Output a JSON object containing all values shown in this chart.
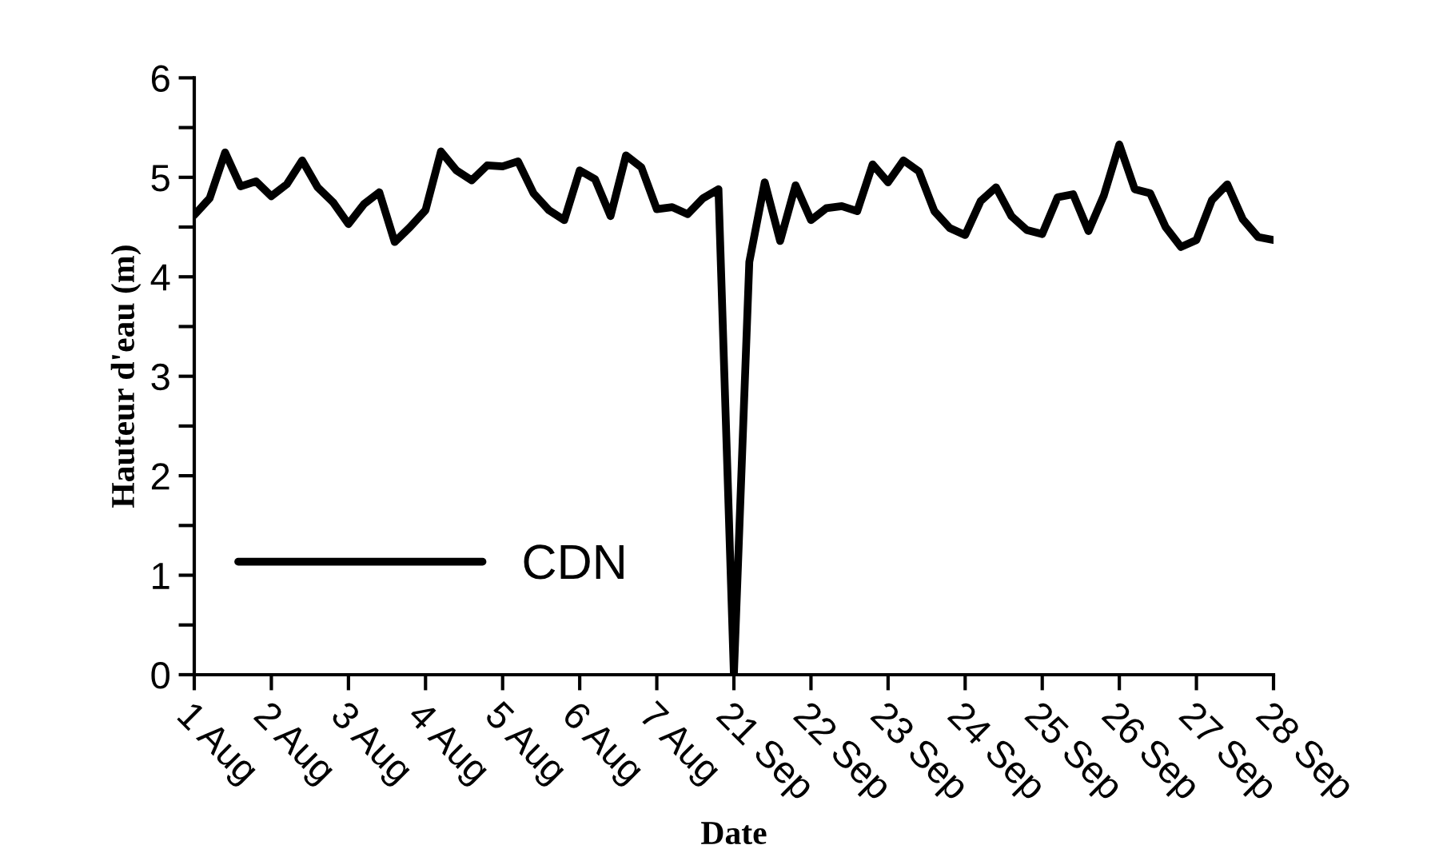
{
  "chart_data": {
    "type": "line",
    "xlabel": "Date",
    "ylabel": "Hauteur d'eau (m)",
    "categories": [
      "1 Aug",
      null,
      null,
      null,
      null,
      "2 Aug",
      null,
      null,
      null,
      null,
      "3 Aug",
      null,
      null,
      null,
      null,
      "4 Aug",
      null,
      null,
      null,
      null,
      "5 Aug",
      null,
      null,
      null,
      null,
      "6 Aug",
      null,
      null,
      null,
      null,
      "7 Aug",
      null,
      null,
      null,
      null,
      "21 Sep",
      null,
      null,
      null,
      null,
      "22 Sep",
      null,
      null,
      null,
      null,
      "23 Sep",
      null,
      null,
      null,
      null,
      "24 Sep",
      null,
      null,
      null,
      null,
      "25 Sep",
      null,
      null,
      null,
      null,
      "26 Sep",
      null,
      null,
      null,
      null,
      "27 Sep",
      null,
      null,
      null,
      null,
      "28 Sep"
    ],
    "ylim": [
      0,
      6
    ],
    "yticks": [
      0,
      {
        "value": 0.5,
        "label": null
      },
      1,
      {
        "value": 1.5,
        "label": null
      },
      2,
      {
        "value": 2.5,
        "label": null
      },
      3,
      {
        "value": 3.5,
        "label": null
      },
      4,
      {
        "value": 4.5,
        "label": null
      },
      5,
      {
        "value": 5.5,
        "label": null
      },
      6
    ],
    "grid": false,
    "legend": "bottom left",
    "marker": "none",
    "line_style": "solid",
    "series": [
      {
        "name": "CDN",
        "color": "#000000",
        "values": [
          4.62,
          4.79,
          5.25,
          4.91,
          4.96,
          4.81,
          4.93,
          5.17,
          4.9,
          4.75,
          4.53,
          4.73,
          4.85,
          4.35,
          4.5,
          4.67,
          5.26,
          5.07,
          4.97,
          5.12,
          5.11,
          5.16,
          4.84,
          4.67,
          4.57,
          5.07,
          4.98,
          4.61,
          5.22,
          5.1,
          4.68,
          4.7,
          4.63,
          4.79,
          4.88,
          0,
          4.15,
          4.95,
          4.36,
          4.92,
          4.57,
          4.69,
          4.71,
          4.66,
          5.13,
          4.95,
          5.17,
          5.06,
          4.66,
          4.49,
          4.42,
          4.76,
          4.9,
          4.61,
          4.47,
          4.43,
          4.8,
          4.83,
          4.46,
          4.82,
          5.33,
          4.88,
          4.84,
          4.5,
          4.3,
          4.37,
          4.77,
          4.93,
          4.58,
          4.4,
          4.37
        ]
      }
    ]
  }
}
